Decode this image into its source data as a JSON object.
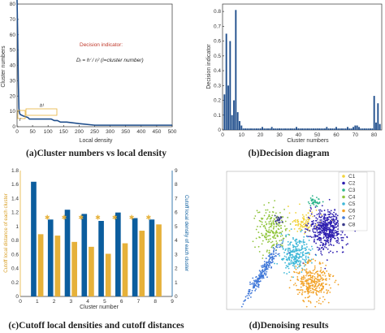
{
  "charts": {
    "a": {
      "caption": "(a)Cluster numbers vs local density",
      "ylabel": "Cluster numbers",
      "xlabel": "Local density",
      "yticks": [
        "0",
        "10",
        "20",
        "30",
        "40",
        "50",
        "60",
        "70",
        "80"
      ],
      "xticks": [
        "0",
        "50",
        "100",
        "150",
        "200",
        "250",
        "300",
        "350",
        "400",
        "450",
        "500"
      ],
      "annotation_title": "Decision indicator:",
      "annotation_formula": "Dᵢ = hⁱ / rᵢ²   (i=cluster number)",
      "label_h": "h¹",
      "label_r": "r"
    },
    "b": {
      "caption": "(b)Decision diagram",
      "ylabel": "Decision indicator",
      "xlabel": "Cluster numbers",
      "yticks": [
        "0",
        "0.1",
        "0.2",
        "0.3",
        "0.4",
        "0.5",
        "0.6",
        "0.7",
        "0.8"
      ],
      "xticks": [
        "0",
        "10",
        "20",
        "30",
        "40",
        "50",
        "60",
        "70",
        "80"
      ]
    },
    "c": {
      "caption": "(c)Cutoff local densities and cutoff distances",
      "ylabel_left": "Cutoff local distance of each cluster",
      "ylabel_right": "Cutoff local density of each cluster",
      "xlabel": "Cluster number",
      "yticks_left": [
        "0",
        "0.2",
        "0.4",
        "0.6",
        "0.8",
        "1",
        "1.2",
        "1.4",
        "1.6",
        "1.8"
      ],
      "yticks_right": [
        "0",
        "1",
        "2",
        "3",
        "4",
        "5",
        "6",
        "7",
        "8",
        "9"
      ],
      "xticks": [
        "0",
        "1",
        "2",
        "3",
        "4",
        "5",
        "6",
        "7",
        "8",
        "9"
      ]
    },
    "d": {
      "caption": "(d)Denoising results",
      "legend": [
        "C1",
        "C2",
        "C3",
        "C4",
        "C5",
        "C6",
        "C7",
        "C8"
      ]
    }
  },
  "chart_data": [
    {
      "type": "line",
      "title": "",
      "xlabel": "Local density",
      "ylabel": "Cluster numbers",
      "xlim": [
        0,
        500
      ],
      "ylim": [
        0,
        80
      ],
      "color": "#1f4e8c",
      "x": [
        0,
        2,
        4,
        6,
        8,
        10,
        20,
        35,
        40,
        50,
        70,
        90,
        110,
        120,
        130,
        140,
        160,
        200,
        250,
        300,
        500
      ],
      "y": [
        83,
        60,
        30,
        12,
        9,
        8,
        7,
        6,
        5,
        5,
        5,
        5,
        5,
        4,
        4,
        3,
        3,
        2,
        1,
        1,
        1
      ]
    },
    {
      "type": "bar",
      "title": "",
      "xlabel": "Cluster numbers",
      "ylabel": "Decision indicator",
      "xlim": [
        0,
        84
      ],
      "ylim": [
        0,
        0.85
      ],
      "color": "#1f4e8c",
      "categories": [
        1,
        2,
        3,
        4,
        5,
        6,
        7,
        8,
        9,
        10,
        11,
        12,
        13,
        14,
        15,
        16,
        17,
        18,
        19,
        20,
        21,
        22,
        23,
        24,
        25,
        26,
        27,
        28,
        29,
        30,
        31,
        32,
        33,
        34,
        35,
        36,
        37,
        38,
        39,
        40,
        41,
        42,
        43,
        44,
        45,
        46,
        47,
        48,
        49,
        50,
        51,
        52,
        53,
        54,
        55,
        56,
        57,
        58,
        59,
        60,
        61,
        62,
        63,
        64,
        65,
        66,
        67,
        68,
        69,
        70,
        71,
        72,
        73,
        74,
        75,
        76,
        77,
        78,
        79,
        80,
        81,
        82,
        83
      ],
      "values": [
        0.24,
        0.65,
        0.3,
        0.6,
        0.1,
        0.2,
        0.81,
        0.12,
        0.06,
        0.03,
        0.01,
        0.01,
        0.01,
        0.01,
        0.01,
        0.01,
        0.01,
        0.01,
        0.01,
        0.01,
        0.02,
        0.01,
        0.01,
        0.01,
        0.01,
        0.02,
        0.01,
        0.01,
        0.01,
        0.01,
        0.01,
        0.01,
        0.01,
        0.01,
        0.01,
        0.01,
        0.01,
        0.01,
        0.02,
        0.01,
        0.01,
        0.01,
        0.01,
        0.01,
        0.01,
        0.01,
        0.01,
        0.01,
        0.01,
        0.01,
        0.01,
        0.01,
        0.01,
        0.01,
        0.02,
        0.01,
        0.01,
        0.01,
        0.01,
        0.02,
        0.01,
        0.01,
        0.01,
        0.01,
        0.01,
        0.02,
        0.01,
        0.01,
        0.02,
        0.03,
        0.03,
        0.02,
        0.01,
        0.01,
        0.01,
        0.01,
        0.01,
        0.01,
        0.01,
        0.23,
        0.05,
        0.18,
        0.04
      ]
    },
    {
      "type": "bar",
      "title": "",
      "xlabel": "Cluster number",
      "categories": [
        1,
        2,
        3,
        4,
        5,
        6,
        7,
        8
      ],
      "xlim": [
        0,
        9
      ],
      "series": [
        {
          "axis": "right",
          "color": "#0b5d9e",
          "values": [
            8.2,
            5.5,
            6.2,
            5.9,
            5.4,
            6.0,
            5.6,
            5.5
          ],
          "ylim": [
            0,
            9
          ]
        },
        {
          "axis": "left",
          "color": "#e6b13a",
          "values": [
            0.89,
            0.87,
            0.78,
            0.71,
            0.61,
            0.76,
            0.94,
            1.03
          ],
          "ylim": [
            0,
            1.8
          ]
        }
      ],
      "markers": {
        "color": "#e6b13a",
        "y_left": 1.1
      }
    },
    {
      "type": "scatter",
      "title": "",
      "series": [
        {
          "name": "C1",
          "color": "#f2d33b",
          "center": [
            0.52,
            0.63
          ],
          "spread": [
            0.05,
            0.04
          ],
          "n": 90
        },
        {
          "name": "C2",
          "color": "#2e1fb0",
          "center": [
            0.68,
            0.58
          ],
          "spread": [
            0.06,
            0.07
          ],
          "n": 520
        },
        {
          "name": "C3",
          "color": "#2fb58c",
          "center": [
            0.6,
            0.78
          ],
          "spread": [
            0.02,
            0.015
          ],
          "n": 40
        },
        {
          "name": "C4",
          "color": "#8fc43a",
          "center": [
            0.3,
            0.58
          ],
          "spread": [
            0.05,
            0.08
          ],
          "n": 200
        },
        {
          "name": "C5",
          "color": "#3fb8d8",
          "center": [
            0.47,
            0.4
          ],
          "spread": [
            0.05,
            0.06
          ],
          "n": 260
        },
        {
          "name": "C6",
          "color": "#f2a32a",
          "center": [
            0.58,
            0.2
          ],
          "spread": [
            0.06,
            0.07
          ],
          "n": 320
        },
        {
          "name": "C7",
          "color": "#3f77d8",
          "center": [
            0.25,
            0.28
          ],
          "spread": [
            0.03,
            0.1
          ],
          "n": 220
        },
        {
          "name": "C8",
          "color": "#3a3a8a",
          "center": [
            0.35,
            0.65
          ],
          "spread": [
            0.015,
            0.015
          ],
          "n": 25
        }
      ]
    }
  ]
}
